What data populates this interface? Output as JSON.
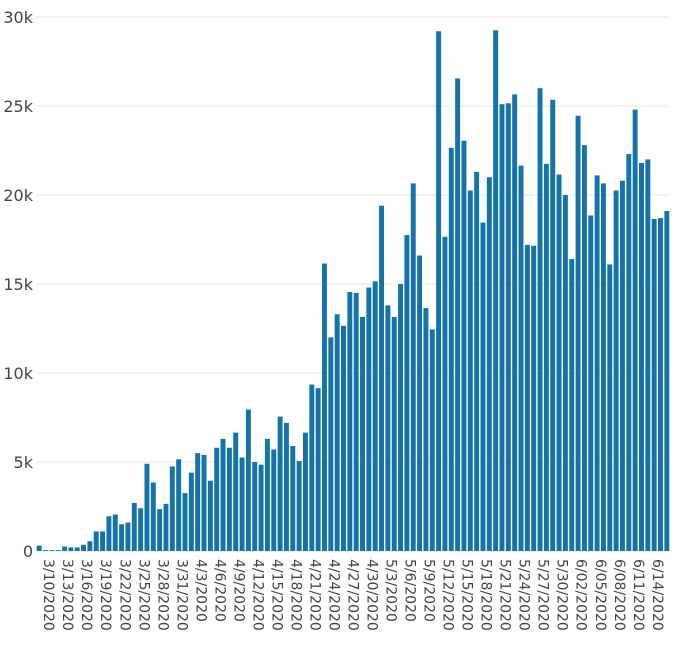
{
  "chart_data": {
    "type": "bar",
    "title": "",
    "xlabel": "",
    "ylabel": "",
    "ylim": [
      0,
      30000
    ],
    "grid": true,
    "color": "#1473a9",
    "yticks": [
      0,
      5000,
      10000,
      15000,
      20000,
      25000,
      30000
    ],
    "ytick_labels": [
      "0",
      "5k",
      "10k",
      "15k",
      "20k",
      "25k",
      "30k"
    ],
    "xtick_labels": [
      "3/10/2020",
      "3/13/2020",
      "3/16/2020",
      "3/19/2020",
      "3/22/2020",
      "3/25/2020",
      "3/28/2020",
      "3/31/2020",
      "4/3/2020",
      "4/6/2020",
      "4/9/2020",
      "4/12/2020",
      "4/15/2020",
      "4/18/2020",
      "4/21/2020",
      "4/24/2020",
      "4/27/2020",
      "4/30/2020",
      "5/3/2020",
      "5/6/2020",
      "5/9/2020",
      "5/12/2020",
      "5/15/2020",
      "5/18/2020",
      "5/21/2020",
      "5/24/2020",
      "5/27/2020",
      "5/30/2020",
      "6/02/2020",
      "6/05/2020",
      "6/08/2020",
      "6/11/2020",
      "6/14/2020"
    ],
    "x": [
      "2020-03-10",
      "2020-03-11",
      "2020-03-12",
      "2020-03-13",
      "2020-03-14",
      "2020-03-15",
      "2020-03-16",
      "2020-03-17",
      "2020-03-18",
      "2020-03-19",
      "2020-03-20",
      "2020-03-21",
      "2020-03-22",
      "2020-03-23",
      "2020-03-24",
      "2020-03-25",
      "2020-03-26",
      "2020-03-27",
      "2020-03-28",
      "2020-03-29",
      "2020-03-30",
      "2020-03-31",
      "2020-04-01",
      "2020-04-02",
      "2020-04-03",
      "2020-04-04",
      "2020-04-05",
      "2020-04-06",
      "2020-04-07",
      "2020-04-08",
      "2020-04-09",
      "2020-04-10",
      "2020-04-11",
      "2020-04-12",
      "2020-04-13",
      "2020-04-14",
      "2020-04-15",
      "2020-04-16",
      "2020-04-17",
      "2020-04-18",
      "2020-04-19",
      "2020-04-20",
      "2020-04-21",
      "2020-04-22",
      "2020-04-23",
      "2020-04-24",
      "2020-04-25",
      "2020-04-26",
      "2020-04-27",
      "2020-04-28",
      "2020-04-29",
      "2020-04-30",
      "2020-05-01",
      "2020-05-02",
      "2020-05-03",
      "2020-05-04",
      "2020-05-05",
      "2020-05-06",
      "2020-05-07",
      "2020-05-08",
      "2020-05-09",
      "2020-05-10",
      "2020-05-11",
      "2020-05-12",
      "2020-05-13",
      "2020-05-14",
      "2020-05-15",
      "2020-05-16",
      "2020-05-17",
      "2020-05-18",
      "2020-05-19",
      "2020-05-20",
      "2020-05-21",
      "2020-05-22",
      "2020-05-23",
      "2020-05-24",
      "2020-05-25",
      "2020-05-26",
      "2020-05-27",
      "2020-05-28",
      "2020-05-29",
      "2020-05-30",
      "2020-05-31",
      "2020-06-01",
      "2020-06-02",
      "2020-06-03",
      "2020-06-04",
      "2020-06-05",
      "2020-06-06",
      "2020-06-07",
      "2020-06-08",
      "2020-06-09",
      "2020-06-10",
      "2020-06-11",
      "2020-06-12",
      "2020-06-13",
      "2020-06-14",
      "2020-06-15",
      "2020-06-16",
      "2020-06-17"
    ],
    "values": [
      300,
      50,
      50,
      50,
      250,
      200,
      200,
      350,
      550,
      1100,
      1100,
      1950,
      2050,
      1500,
      1600,
      2700,
      2400,
      4900,
      3850,
      2350,
      2650,
      4750,
      5150,
      3250,
      4400,
      5500,
      5400,
      3950,
      5800,
      6300,
      5800,
      6650,
      5250,
      7950,
      5000,
      4850,
      6300,
      5700,
      7550,
      7200,
      5900,
      5050,
      6650,
      9350,
      9150,
      16150,
      12000,
      13300,
      12650,
      14550,
      14500,
      13150,
      14800,
      15150,
      19400,
      13800,
      13150,
      15000,
      17750,
      20650,
      16600,
      13650,
      12450,
      29200,
      17650,
      22650,
      26550,
      23050,
      20250,
      21300,
      18450,
      21000,
      29250,
      25100,
      25150,
      25650,
      21650,
      17200,
      17150,
      26000,
      21750,
      25350,
      21150,
      20000,
      16400,
      24450,
      22800,
      18850,
      21100,
      20650,
      16100,
      20250,
      20800,
      22300,
      24800,
      21800,
      22000,
      18650,
      18700,
      19100
    ]
  }
}
